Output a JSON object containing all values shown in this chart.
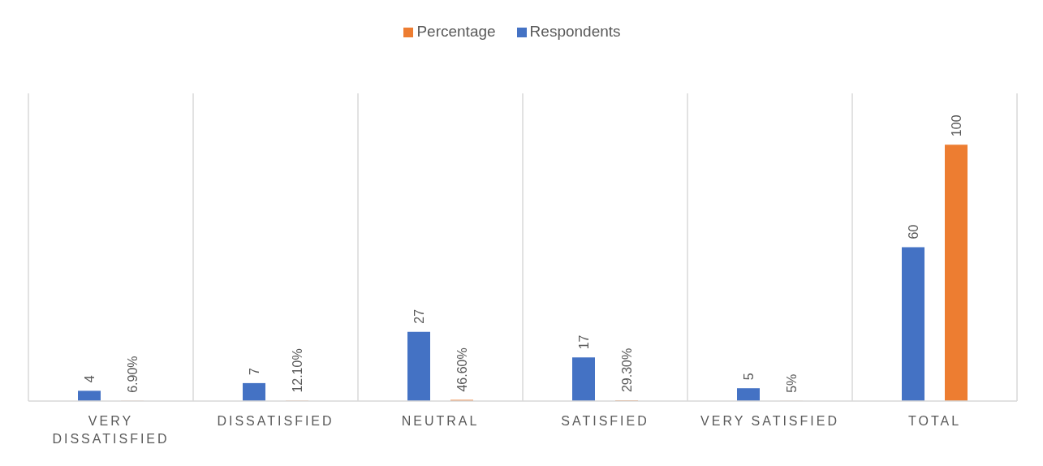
{
  "chart_data": {
    "type": "bar",
    "categories": [
      "VERY DISSATISFIED",
      "DISSATISFIED",
      "NEUTRAL",
      "SATISFIED",
      "VERY SATISFIED",
      "TOTAL"
    ],
    "series": [
      {
        "name": "Respondents",
        "color": "#4472c4",
        "values": [
          4,
          7,
          27,
          17,
          5,
          60
        ],
        "value_labels": [
          "4",
          "7",
          "27",
          "17",
          "5",
          "60"
        ]
      },
      {
        "name": "Percentage",
        "color": "#ed7d31",
        "values": [
          0.069,
          0.121,
          0.466,
          0.293,
          0.05,
          100
        ],
        "value_labels": [
          "6.90%",
          "12.10%",
          "46.60%",
          "29.30%",
          "5%",
          "100"
        ]
      }
    ],
    "ylim": [
      0,
      120
    ],
    "tick_labels": "x",
    "grid": "x",
    "legend": "top"
  }
}
